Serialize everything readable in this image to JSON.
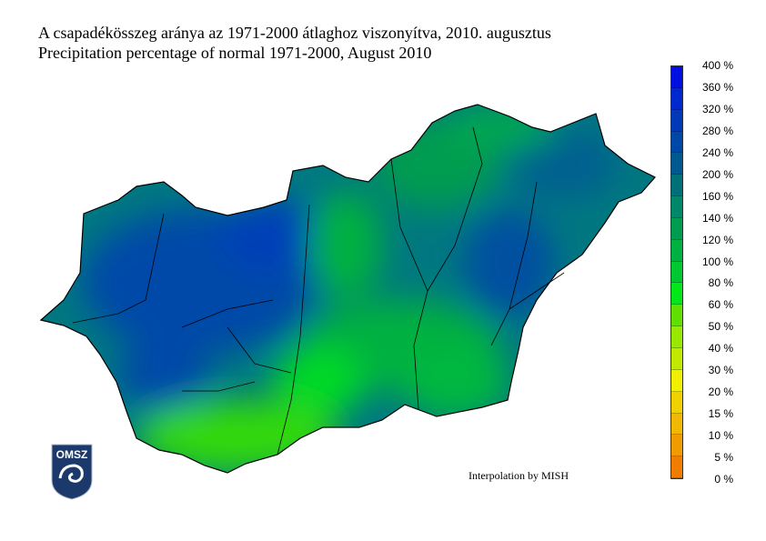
{
  "title_hu": "A csapadékösszeg aránya az 1971-2000 átlaghoz viszonyítva, 2010. augusztus",
  "title_en": "Precipitation percentage of normal 1971-2000, August 2010",
  "credit": "Interpolation by MISH",
  "logo_text": "OMSZ",
  "legend": {
    "labels": [
      "400 %",
      "360 %",
      "320 %",
      "280 %",
      "240 %",
      "200 %",
      "160 %",
      "140 %",
      "120 %",
      "100 %",
      "80 %",
      "60 %",
      "50 %",
      "40 %",
      "30 %",
      "20 %",
      "15 %",
      "10 %",
      "5 %",
      "0 %"
    ],
    "colors": [
      "#0010e0",
      "#0028d0",
      "#0038b8",
      "#0048a8",
      "#005890",
      "#007078",
      "#008868",
      "#009c50",
      "#00b040",
      "#00c830",
      "#00e818",
      "#60e000",
      "#98e800",
      "#c0e800",
      "#f0f000",
      "#f0d000",
      "#f0b800",
      "#f09c00",
      "#f07c00"
    ]
  }
}
